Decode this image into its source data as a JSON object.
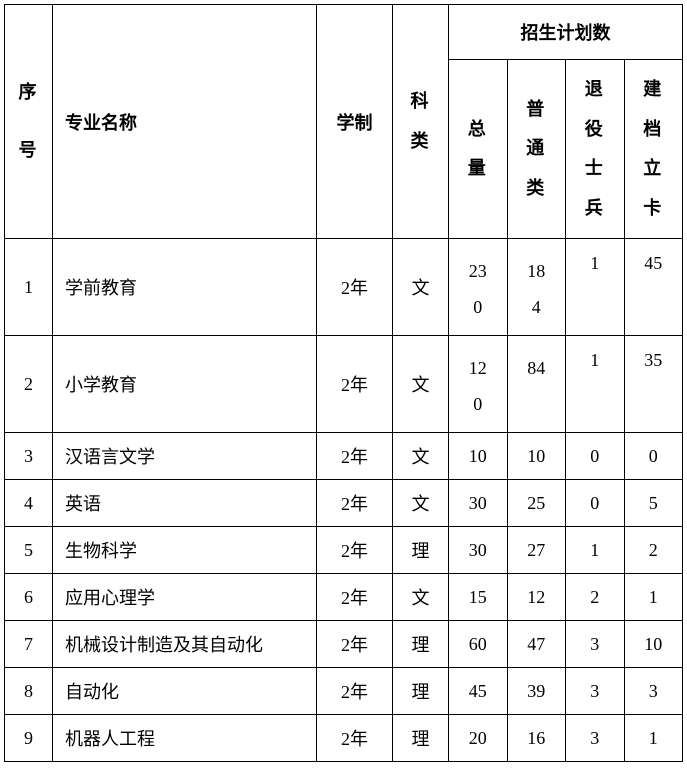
{
  "table": {
    "headers": {
      "seq": "序号",
      "name": "专业名称",
      "system": "学制",
      "category": "科类",
      "plan_title": "招生计划数",
      "plan_total": "总量",
      "plan_normal": "普通类",
      "plan_veteran": "退役士兵",
      "plan_record": "建档立卡"
    },
    "rows": [
      {
        "seq": "1",
        "name": "学前教育",
        "system": "2年",
        "category": "文",
        "total": "230",
        "normal": "184",
        "veteran": "1",
        "record": "45"
      },
      {
        "seq": "2",
        "name": "小学教育",
        "system": "2年",
        "category": "文",
        "total": "120",
        "normal": "84",
        "veteran": "1",
        "record": "35"
      },
      {
        "seq": "3",
        "name": "汉语言文学",
        "system": "2年",
        "category": "文",
        "total": "10",
        "normal": "10",
        "veteran": "0",
        "record": "0"
      },
      {
        "seq": "4",
        "name": "英语",
        "system": "2年",
        "category": "文",
        "total": "30",
        "normal": "25",
        "veteran": "0",
        "record": "5"
      },
      {
        "seq": "5",
        "name": "生物科学",
        "system": "2年",
        "category": "理",
        "total": "30",
        "normal": "27",
        "veteran": "1",
        "record": "2"
      },
      {
        "seq": "6",
        "name": "应用心理学",
        "system": "2年",
        "category": "文",
        "total": "15",
        "normal": "12",
        "veteran": "2",
        "record": "1"
      },
      {
        "seq": "7",
        "name": "机械设计制造及其自动化",
        "system": "2年",
        "category": "理",
        "total": "60",
        "normal": "47",
        "veteran": "3",
        "record": "10"
      },
      {
        "seq": "8",
        "name": "自动化",
        "system": "2年",
        "category": "理",
        "total": "45",
        "normal": "39",
        "veteran": "3",
        "record": "3"
      },
      {
        "seq": "9",
        "name": "机器人工程",
        "system": "2年",
        "category": "理",
        "total": "20",
        "normal": "16",
        "veteran": "3",
        "record": "1"
      }
    ]
  },
  "style": {
    "font_family": "SimSun",
    "font_size": 18,
    "border_color": "#000000",
    "background_color": "#ffffff",
    "text_color": "#000000"
  }
}
